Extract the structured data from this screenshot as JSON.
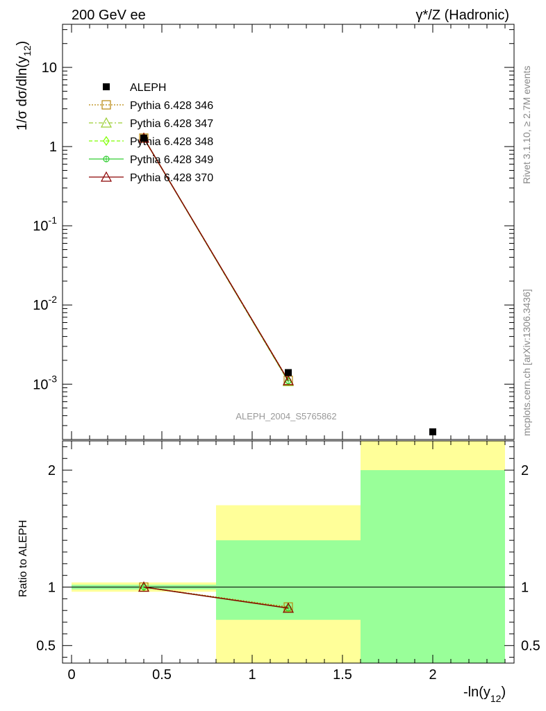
{
  "header": {
    "left": "200 GeV ee",
    "right": "γ*/Z (Hadronic)"
  },
  "side_labels": {
    "rivet": "Rivet 3.1.10, ≥ 2.7M events",
    "mcplots": "mcplots.cern.ch [arXiv:1306.3436]"
  },
  "watermark": "ALEPH_2004_S5765862",
  "chart_data": [
    {
      "type": "line",
      "panel": "main",
      "ylabel": "1/σ dσ/dln(y12)",
      "yscale": "log",
      "ylim": [
        0.0002,
        35
      ],
      "xlim": [
        -0.05,
        2.45
      ],
      "ytick_labels": [
        "10^-3",
        "10^-2",
        "10^-1",
        "1",
        "10"
      ],
      "legend_position": "top-left",
      "legend": [
        {
          "label": "ALEPH",
          "marker": "filled-square",
          "color": "#000000"
        },
        {
          "label": "Pythia 6.428 346",
          "marker": "open-square",
          "color": "#b8860b",
          "line": "dotted"
        },
        {
          "label": "Pythia 6.428 347",
          "marker": "open-triangle",
          "color": "#9acd32",
          "line": "dashdot"
        },
        {
          "label": "Pythia 6.428 348",
          "marker": "open-diamond",
          "color": "#7fff00",
          "line": "dashed"
        },
        {
          "label": "Pythia 6.428 349",
          "marker": "open-cross",
          "color": "#32cd32",
          "line": "solid"
        },
        {
          "label": "Pythia 6.428 370",
          "marker": "open-triangle",
          "color": "#8b0000",
          "line": "solid"
        }
      ],
      "data_series": {
        "x": [
          0.4,
          1.2,
          2.0
        ],
        "values": [
          1.28,
          0.0014,
          0.00025
        ]
      },
      "series": [
        {
          "name": "Pythia 6.428 346",
          "x": [
            0.4,
            1.2
          ],
          "values": [
            1.28,
            0.00112
          ]
        },
        {
          "name": "Pythia 6.428 347",
          "x": [
            0.4,
            1.2
          ],
          "values": [
            1.28,
            0.00108
          ]
        },
        {
          "name": "Pythia 6.428 348",
          "x": [
            0.4,
            1.2
          ],
          "values": [
            1.28,
            0.00109
          ]
        },
        {
          "name": "Pythia 6.428 349",
          "x": [
            0.4,
            1.2
          ],
          "values": [
            1.28,
            0.0011
          ]
        },
        {
          "name": "Pythia 6.428 370",
          "x": [
            0.4,
            1.2
          ],
          "values": [
            1.28,
            0.00111
          ]
        }
      ]
    },
    {
      "type": "line",
      "panel": "ratio",
      "xlabel": "-ln(y12)",
      "ylabel": "Ratio to ALEPH",
      "ylim": [
        0.35,
        2.25
      ],
      "xlim": [
        -0.05,
        2.45
      ],
      "xticks": [
        0,
        0.5,
        1,
        1.5,
        2
      ],
      "xtick_labels": [
        "0",
        "0.5",
        "1",
        "1.5",
        "2"
      ],
      "yticks": [
        0.5,
        1,
        2
      ],
      "ytick_labels": [
        "0.5",
        "1",
        "2"
      ],
      "bands": [
        {
          "x": [
            0,
            0.8
          ],
          "inner": [
            0.98,
            1.02
          ],
          "outer": [
            0.96,
            1.04
          ]
        },
        {
          "x": [
            0.8,
            1.6
          ],
          "inner": [
            0.72,
            1.4
          ],
          "outer": [
            0.35,
            1.7
          ]
        },
        {
          "x": [
            1.6,
            2.4
          ],
          "inner": [
            0.35,
            2.0
          ],
          "outer": [
            0.35,
            2.25
          ]
        }
      ],
      "series": [
        {
          "name": "Pythia 6.428 346",
          "x": [
            0.4,
            1.2
          ],
          "values": [
            1.0,
            0.83
          ]
        },
        {
          "name": "Pythia 6.428 347",
          "x": [
            0.4,
            1.2
          ],
          "values": [
            1.0,
            0.82
          ]
        },
        {
          "name": "Pythia 6.428 348",
          "x": [
            0.4,
            1.2
          ],
          "values": [
            1.0,
            0.82
          ]
        },
        {
          "name": "Pythia 6.428 349",
          "x": [
            0.4,
            1.2
          ],
          "values": [
            1.0,
            0.82
          ]
        },
        {
          "name": "Pythia 6.428 370",
          "x": [
            0.4,
            1.2
          ],
          "values": [
            1.0,
            0.82
          ]
        }
      ]
    }
  ]
}
